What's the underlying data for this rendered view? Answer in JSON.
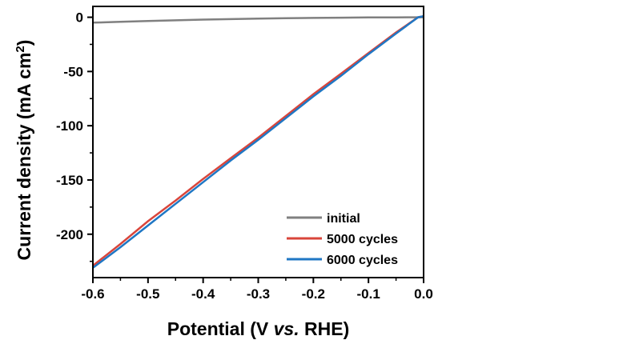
{
  "chart_data": {
    "type": "line",
    "xlabel": {
      "prefix": "Potential (V ",
      "italic": "vs.",
      "suffix": " RHE)"
    },
    "ylabel": {
      "main": "Current density (mA cm",
      "sup": "2",
      "close": ")"
    },
    "xlim": [
      -0.6,
      0.0
    ],
    "ylim": [
      -240,
      10
    ],
    "xticks": [
      -0.6,
      -0.5,
      -0.4,
      -0.3,
      -0.2,
      -0.1,
      0.0
    ],
    "xtick_labels": [
      "-0.6",
      "-0.5",
      "-0.4",
      "-0.3",
      "-0.2",
      "-0.1",
      "0.0"
    ],
    "yticks": [
      0,
      -50,
      -100,
      -150,
      -200
    ],
    "ytick_labels": [
      "0",
      "-50",
      "-100",
      "-150",
      "-200"
    ],
    "grid": false,
    "legend_position": "bottom-right",
    "series": [
      {
        "name": "initial",
        "color": "#808080",
        "x": [
          -0.6,
          -0.55,
          -0.5,
          -0.45,
          -0.4,
          -0.35,
          -0.3,
          -0.25,
          -0.2,
          -0.15,
          -0.1,
          -0.05,
          0.0
        ],
        "y": [
          -5.0,
          -4.2,
          -3.5,
          -2.8,
          -2.2,
          -1.7,
          -1.2,
          -0.9,
          -0.6,
          -0.4,
          -0.2,
          -0.1,
          0.0
        ]
      },
      {
        "name": "5000 cycles",
        "color": "#d9453b",
        "x": [
          -0.6,
          -0.55,
          -0.5,
          -0.45,
          -0.4,
          -0.35,
          -0.3,
          -0.25,
          -0.2,
          -0.15,
          -0.1,
          -0.05,
          -0.01,
          0.0
        ],
        "y": [
          -229,
          -209,
          -188,
          -169,
          -149,
          -130,
          -111,
          -91,
          -71,
          -52,
          -33,
          -14,
          0,
          1
        ]
      },
      {
        "name": "6000 cycles",
        "color": "#1f77c4",
        "x": [
          -0.6,
          -0.55,
          -0.5,
          -0.45,
          -0.4,
          -0.35,
          -0.3,
          -0.25,
          -0.2,
          -0.15,
          -0.1,
          -0.05,
          -0.01,
          0.0
        ],
        "y": [
          -231,
          -212,
          -192,
          -172,
          -152,
          -132,
          -113,
          -93,
          -73,
          -54,
          -34,
          -15,
          0,
          1
        ]
      }
    ]
  }
}
